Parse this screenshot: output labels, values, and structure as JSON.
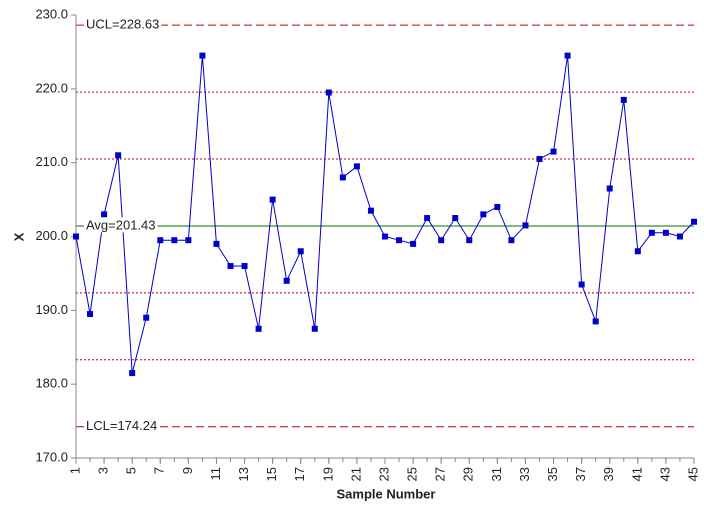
{
  "chart_data": {
    "type": "line",
    "x_label": "Sample Number",
    "y_label": "X",
    "x": [
      1,
      2,
      3,
      4,
      5,
      6,
      7,
      8,
      9,
      10,
      11,
      12,
      13,
      14,
      15,
      16,
      17,
      18,
      19,
      20,
      21,
      22,
      23,
      24,
      25,
      26,
      27,
      28,
      29,
      30,
      31,
      32,
      33,
      34,
      35,
      36,
      37,
      38,
      39,
      40,
      41,
      42,
      43,
      44,
      45
    ],
    "series": [
      {
        "name": "X",
        "color": "#0000cc",
        "values": [
          200,
          189.5,
          203,
          211,
          181.5,
          189,
          199.5,
          199.5,
          199.5,
          224.5,
          199,
          196,
          196,
          187.5,
          205,
          194,
          198,
          187.5,
          219.5,
          208,
          209.5,
          203.5,
          200,
          199.5,
          199,
          202.5,
          199.5,
          202.5,
          199.5,
          203,
          204,
          199.5,
          201.5,
          210.5,
          211.5,
          224.5,
          193.5,
          188.5,
          206.5,
          218.5,
          198,
          200.5,
          200.5,
          200,
          202
        ]
      }
    ],
    "limit_lines": [
      {
        "label": "UCL=228.63",
        "value": 228.63,
        "color": "#c00000",
        "style": "dashed"
      },
      {
        "label": "Avg=201.43",
        "value": 201.43,
        "color": "#007000",
        "style": "solid"
      },
      {
        "label": "LCL=174.24",
        "value": 174.24,
        "color": "#c00000",
        "style": "dashed"
      }
    ],
    "zone_lines": {
      "color": "#c00000",
      "style": "dotted",
      "values": [
        219.56,
        210.5,
        192.36,
        183.3
      ]
    },
    "xlim": [
      1,
      45
    ],
    "xticks": [
      1,
      3,
      5,
      7,
      9,
      11,
      13,
      15,
      17,
      19,
      21,
      23,
      25,
      27,
      29,
      31,
      33,
      35,
      37,
      39,
      41,
      43,
      45
    ],
    "ylim": [
      170,
      230
    ],
    "yticks": [
      {
        "value": 170,
        "label": "170.0"
      },
      {
        "value": 180,
        "label": "180.0"
      },
      {
        "value": 190,
        "label": "190.0"
      },
      {
        "value": 200,
        "label": "200.0"
      },
      {
        "value": 210,
        "label": "210.0"
      },
      {
        "value": 220,
        "label": "220.0"
      },
      {
        "value": 230,
        "label": "230.0"
      }
    ]
  }
}
